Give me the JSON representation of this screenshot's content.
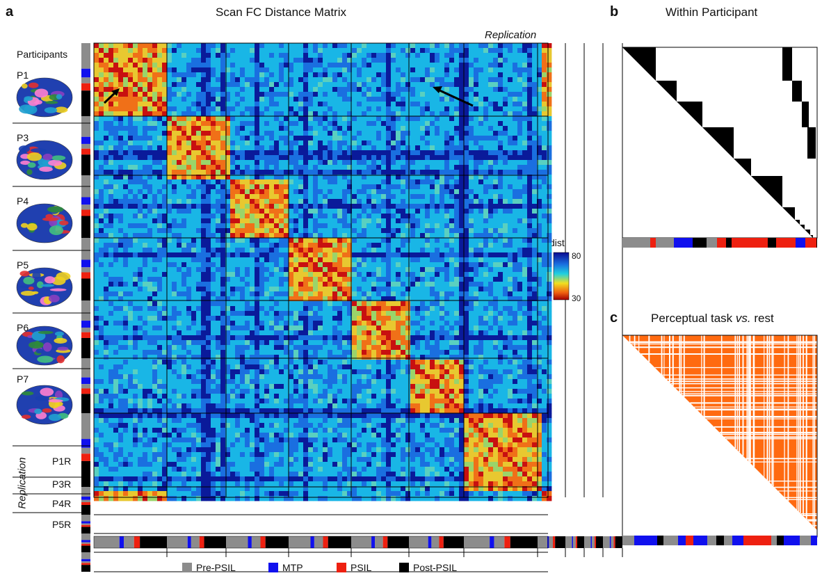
{
  "panel_a": {
    "letter": "a",
    "title": "Scan FC Distance Matrix",
    "participants_header": "Participants",
    "participants": [
      "P1",
      "P3",
      "P4",
      "P5",
      "P6",
      "P7"
    ],
    "replication_participants": [
      "P1R",
      "P3R",
      "P4R",
      "P5R"
    ],
    "replication_label": "Replication",
    "replication_top_label": "Replication",
    "colorbar": {
      "title": "dist",
      "max": "80",
      "min": "30"
    }
  },
  "panel_b": {
    "letter": "b",
    "title": "Within Participant"
  },
  "panel_c": {
    "letter": "c",
    "title_part1": "Perceptual task ",
    "title_vs": "vs.",
    "title_part2": " rest"
  },
  "legend": {
    "items": [
      {
        "label": "Pre-PSIL",
        "color": "#8c8c8c"
      },
      {
        "label": "MTP",
        "color": "#1010ee"
      },
      {
        "label": "PSIL",
        "color": "#ee2010"
      },
      {
        "label": "Post-PSIL",
        "color": "#000000"
      }
    ]
  },
  "colors": {
    "dark_blue": "#0a1a9a",
    "mid_blue": "#1a6fe0",
    "cyan": "#19b6e6",
    "yellow": "#e8c830",
    "orange": "#f07018",
    "red": "#c81010",
    "task_orange": "#ff6a10"
  }
}
